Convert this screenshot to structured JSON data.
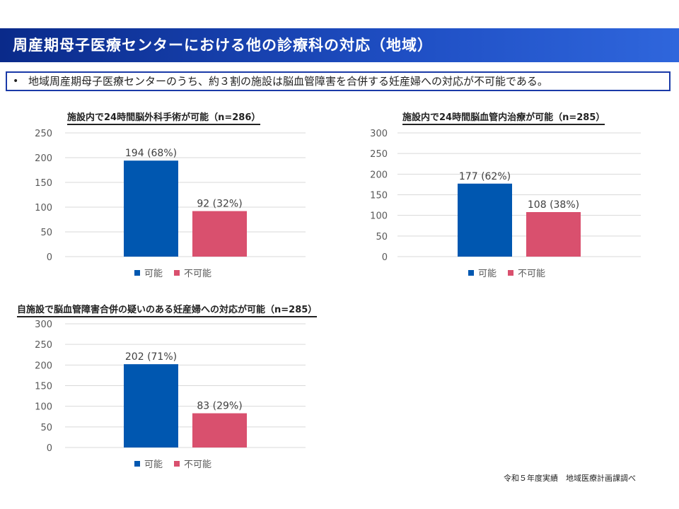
{
  "header": {
    "title": "周産期母子医療センターにおける他の診療科の対応（地域）"
  },
  "summary": {
    "bullet": "•",
    "text": "地域周産期母子医療センターのうち、約３割の施設は脳血管障害を合併する妊産婦への対応が不可能である。"
  },
  "colors": {
    "possible": "#0057b0",
    "impossible": "#d9506e",
    "grid": "#d9d9d9",
    "axis_text": "#595959"
  },
  "legend": {
    "possible": "可能",
    "impossible": "不可能"
  },
  "source": "令和５年度実績　地域医療計画課調べ",
  "chart_data": [
    {
      "type": "bar",
      "title": "施設内で24時間脳外科手術が可能（n=286）",
      "categories": [
        "可能",
        "不可能"
      ],
      "values": [
        194,
        92
      ],
      "labels": [
        "194 (68%)",
        "92 (32%)"
      ],
      "yticks": [
        "0",
        "50",
        "100",
        "150",
        "200",
        "250"
      ],
      "ylim": [
        0,
        250
      ]
    },
    {
      "type": "bar",
      "title": "施設内で24時間脳血管内治療が可能（n=285）",
      "categories": [
        "可能",
        "不可能"
      ],
      "values": [
        177,
        108
      ],
      "labels": [
        "177 (62%)",
        "108 (38%)"
      ],
      "yticks": [
        "0",
        "50",
        "100",
        "150",
        "200",
        "250",
        "300"
      ],
      "ylim": [
        0,
        300
      ]
    },
    {
      "type": "bar",
      "title": "自施設で脳血管障害合併の疑いのある妊産婦への対応が可能（n=285）",
      "categories": [
        "可能",
        "不可能"
      ],
      "values": [
        202,
        83
      ],
      "labels": [
        "202 (71%)",
        "83 (29%)"
      ],
      "yticks": [
        "0",
        "50",
        "100",
        "150",
        "200",
        "250",
        "300"
      ],
      "ylim": [
        0,
        300
      ]
    }
  ]
}
